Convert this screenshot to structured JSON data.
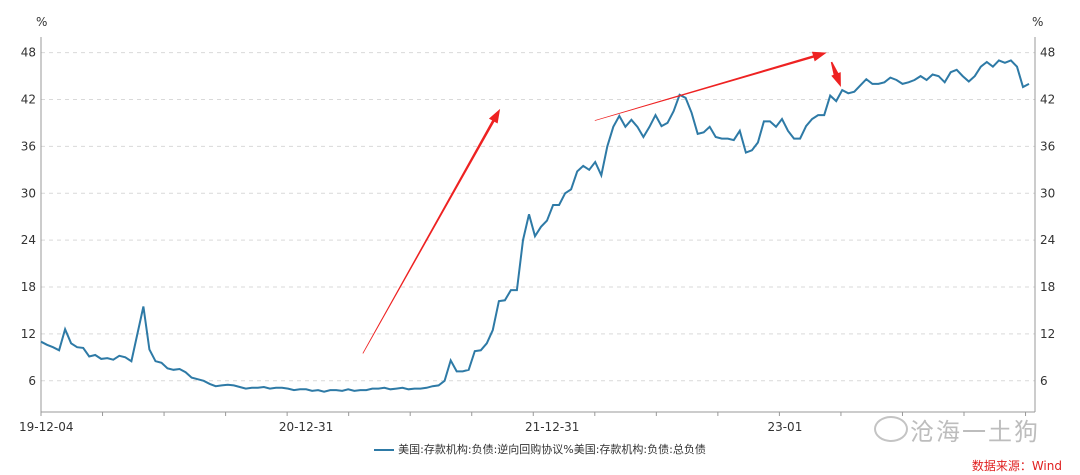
{
  "chart_data": {
    "type": "line",
    "left_unit": "%",
    "right_unit": "%",
    "ylim": [
      2,
      50
    ],
    "yticks": [
      6,
      12,
      18,
      24,
      30,
      36,
      42,
      48
    ],
    "xlim": [
      0,
      210
    ],
    "x_tick_labels": [
      {
        "label": "19-12-04",
        "x": 0
      },
      {
        "label": "20-12-31",
        "x": 56
      },
      {
        "label": "21-12-31",
        "x": 108
      },
      {
        "label": "23-01",
        "x": 160
      }
    ],
    "minor_ticks": [
      0,
      13,
      26,
      39,
      52,
      65,
      78,
      91,
      104,
      117,
      130,
      143,
      156,
      169,
      182,
      195,
      208
    ],
    "legend_label": "美国:存款机构:负债:逆向回购协议%美国:存款机构:负债:总负债",
    "source": "数据来源：Wind",
    "watermark": "沧海一土狗",
    "line_color": "#2e7aa6",
    "arrow_color": "#ee2222",
    "series": [
      {
        "name": "美国:存款机构:负债:逆向回购协议%美国:存款机构:负债:总负债",
        "values": [
          11.0,
          10.6,
          10.3,
          9.9,
          12.6,
          10.8,
          10.3,
          10.2,
          9.1,
          9.3,
          8.8,
          8.9,
          8.7,
          9.2,
          9.0,
          8.5,
          12.0,
          15.5,
          10.0,
          8.5,
          8.3,
          7.6,
          7.4,
          7.5,
          7.1,
          6.4,
          6.2,
          6.0,
          5.6,
          5.3,
          5.4,
          5.5,
          5.4,
          5.2,
          5.0,
          5.1,
          5.1,
          5.2,
          5.0,
          5.1,
          5.1,
          5.0,
          4.8,
          4.9,
          4.9,
          4.7,
          4.8,
          4.6,
          4.8,
          4.8,
          4.7,
          4.9,
          4.7,
          4.8,
          4.8,
          5.0,
          5.0,
          5.1,
          4.9,
          5.0,
          5.1,
          4.9,
          5.0,
          5.0,
          5.1,
          5.3,
          5.4,
          6.0,
          8.6,
          7.2,
          7.2,
          7.4,
          9.8,
          9.9,
          10.8,
          12.5,
          16.2,
          16.3,
          17.6,
          17.6,
          24.0,
          27.3,
          24.5,
          25.7,
          26.5,
          28.5,
          28.5,
          30.0,
          30.5,
          32.8,
          33.5,
          33.0,
          34.0,
          32.3,
          36.0,
          38.5,
          39.9,
          38.5,
          39.4,
          38.5,
          37.2,
          38.5,
          40.0,
          38.6,
          39.0,
          40.5,
          42.6,
          42.2,
          40.3,
          37.6,
          37.8,
          38.5,
          37.2,
          37.0,
          37.0,
          36.8,
          38.0,
          35.2,
          35.5,
          36.5,
          39.2,
          39.2,
          38.5,
          39.5,
          38.0,
          37.0,
          37.0,
          38.6,
          39.5,
          40.0,
          40.0,
          42.5,
          41.8,
          43.2,
          42.8,
          43.0,
          43.8,
          44.6,
          44.0,
          44.0,
          44.2,
          44.8,
          44.5,
          44.0,
          44.2,
          44.5,
          45.0,
          44.5,
          45.2,
          45.0,
          44.2,
          45.5,
          45.8,
          45.0,
          44.3,
          45.0,
          46.2,
          46.8,
          46.2,
          47.0,
          46.7,
          47.0,
          46.2,
          43.6,
          44.0
        ]
      }
    ],
    "arrows": [
      {
        "from": [
          68,
          9.5
        ],
        "to": [
          97,
          40.8
        ],
        "width": 1.3
      },
      {
        "from": [
          117,
          39.3
        ],
        "to": [
          166,
          48.0
        ],
        "width": 1.2
      },
      {
        "from": [
          167,
          46.8
        ],
        "to": [
          169,
          43.6
        ],
        "width": 2.5
      }
    ]
  }
}
